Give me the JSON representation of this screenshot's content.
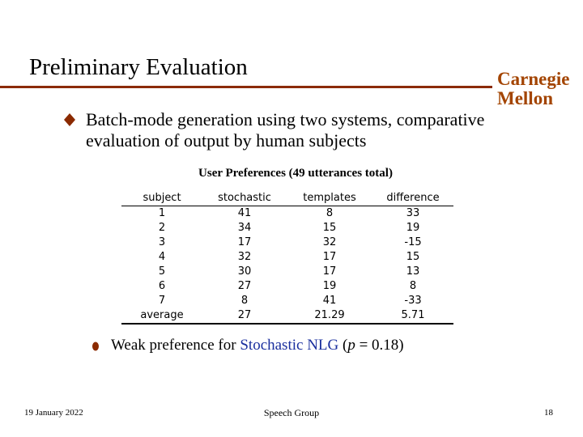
{
  "slide": {
    "title": "Preliminary Evaluation",
    "brand_line1": "Carnegie",
    "brand_line2": "Mellon",
    "bullet_text": "Batch-mode generation using two systems, comparative evaluation of output by human subjects",
    "table": {
      "caption": "User Preferences (49 utterances total)",
      "headers": [
        "subject",
        "stochastic",
        "templates",
        "difference"
      ],
      "rows": [
        [
          "1",
          "41",
          "8",
          "33"
        ],
        [
          "2",
          "34",
          "15",
          "19"
        ],
        [
          "3",
          "17",
          "32",
          "-15"
        ],
        [
          "4",
          "32",
          "17",
          "15"
        ],
        [
          "5",
          "30",
          "17",
          "13"
        ],
        [
          "6",
          "27",
          "19",
          "8"
        ],
        [
          "7",
          "8",
          "41",
          "-33"
        ],
        [
          "average",
          "27",
          "21.29",
          "5.71"
        ]
      ]
    },
    "sub_bullet": {
      "prefix": "Weak preference for ",
      "highlight": "Stochastic NLG",
      "middle": " (",
      "p_symbol": "p",
      "suffix": " = 0.18)"
    },
    "footer": {
      "date": "19 January 2022",
      "center": "Speech Group",
      "page": "18"
    },
    "colors": {
      "rule": "#8b2a00",
      "brand": "#a34400",
      "bullet": "#8b2a00",
      "highlight": "#1a2f9e"
    },
    "icons": {
      "main_bullet": "diamond-bullet-icon",
      "sub_bullet": "dot-bullet-icon"
    }
  }
}
